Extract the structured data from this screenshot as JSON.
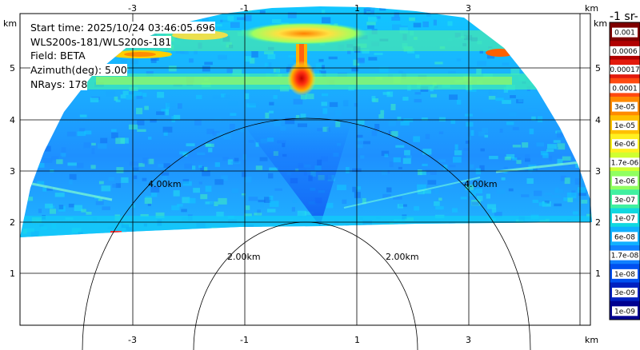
{
  "info": {
    "start_time": "Start time: 2025/10/24 03:46:05.696",
    "instrument": "WLS200s-181/WLS200s-181",
    "field": "Field: BETA",
    "azimuth": "Azimuth(deg): 5.00",
    "nrays": "NRays: 178"
  },
  "axes": {
    "x_unit": "km",
    "y_unit": "km",
    "x_ticks": [
      "-3",
      "-1",
      "1",
      "3"
    ],
    "y_ticks": [
      "5",
      "4",
      "3",
      "2",
      "1"
    ]
  },
  "range_rings": [
    "2.00km",
    "4.00km"
  ],
  "colorbar": {
    "title": "-1 sr-",
    "labels": [
      "0.001",
      "0.0006",
      "0.00017",
      "0.0001",
      "3e-05",
      "1e-05",
      "6e-06",
      "1.7e-06",
      "1e-06",
      "3e-07",
      "1e-07",
      "6e-08",
      "1.7e-08",
      "1e-08",
      "3e-09",
      "1e-09"
    ],
    "colors": [
      "#7f0000",
      "#b00000",
      "#e31a0c",
      "#ff4a10",
      "#ff8a00",
      "#ffc000",
      "#fff020",
      "#d0ff30",
      "#90ff60",
      "#40f0a0",
      "#10d8e0",
      "#10b0ff",
      "#1080ff",
      "#0050f0",
      "#0020c0",
      "#000090"
    ]
  },
  "chart_data": {
    "type": "heatmap",
    "title": "",
    "xlabel": "km",
    "ylabel": "km",
    "xlim": [
      -4.1,
      4.1
    ],
    "ylim": [
      0,
      5.7
    ],
    "x_ticks": [
      -3,
      -1,
      1,
      3
    ],
    "y_ticks": [
      1,
      2,
      3,
      4,
      5
    ],
    "grid": true,
    "range_rings_km": [
      2,
      4
    ],
    "field": "BETA",
    "azimuth_deg": 5.0,
    "nrays": 178,
    "color_scale": "log",
    "color_levels": [
      0.001,
      0.0006,
      0.00017,
      0.0001,
      3e-05,
      1e-05,
      6e-06,
      1.7e-06,
      1e-06,
      3e-07,
      1e-07,
      6e-08,
      1.7e-08,
      1e-08,
      3e-09,
      1e-09
    ]
  }
}
